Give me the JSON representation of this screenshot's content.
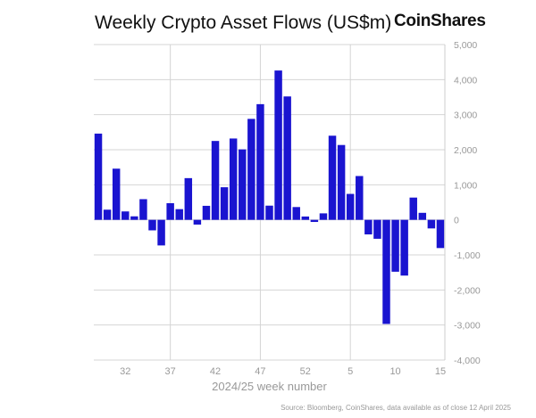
{
  "chart_data": {
    "type": "bar",
    "title": "Weekly Crypto Asset Flows (US$m)",
    "xlabel": "2024/25 week number",
    "ylabel": "",
    "ylim": [
      -4000,
      5000
    ],
    "yticks": [
      5000,
      4000,
      3000,
      2000,
      1000,
      0,
      -1000,
      -2000,
      -3000,
      -4000
    ],
    "ytick_labels": [
      "5,000",
      "4,000",
      "3,000",
      "2,000",
      "1,000",
      "0",
      "-1,000",
      "-2,000",
      "-3,000",
      "-4,000"
    ],
    "y_axis_side": "right",
    "categories": [
      "29",
      "30",
      "31",
      "32",
      "33",
      "34",
      "35",
      "36",
      "37",
      "38",
      "39",
      "40",
      "41",
      "42",
      "43",
      "44",
      "45",
      "46",
      "47",
      "48",
      "49",
      "50",
      "51",
      "52",
      "1",
      "2",
      "3",
      "4",
      "5",
      "6",
      "7",
      "8",
      "9",
      "10",
      "11",
      "12",
      "13",
      "14",
      "15"
    ],
    "xtick_labels": [
      "32",
      "37",
      "42",
      "47",
      "52",
      "5",
      "10",
      "15"
    ],
    "values": [
      2460,
      290,
      1460,
      240,
      100,
      590,
      -300,
      -730,
      475,
      305,
      1190,
      -135,
      400,
      2250,
      930,
      2320,
      2010,
      2880,
      3300,
      405,
      4260,
      3520,
      365,
      95,
      -60,
      185,
      2400,
      2135,
      740,
      1250,
      -415,
      -540,
      -2970,
      -1480,
      -1590,
      635,
      200,
      -245,
      -805
    ],
    "bar_color": "#1a14d0",
    "grid": true
  },
  "brand": "CoinShares",
  "source": "Source: Bloomberg, CoinShares, data available as of close 12 April 2025"
}
